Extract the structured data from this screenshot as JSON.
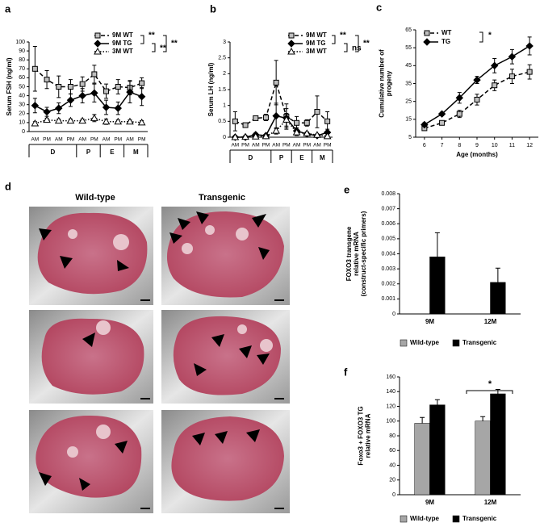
{
  "chart_data": [
    {
      "type": "line",
      "panel": "a",
      "ylabel": [
        "Serum FSH (ng/ml)"
      ],
      "categories": [
        "AM",
        "PM",
        "AM",
        "PM",
        "AM",
        "PM",
        "AM",
        "PM",
        "AM",
        "PM"
      ],
      "x_groups": [
        {
          "label": "D",
          "count": 4
        },
        {
          "label": "P",
          "count": 2
        },
        {
          "label": "E",
          "count": 2
        },
        {
          "label": "M",
          "count": 2
        }
      ],
      "ylim": [
        0,
        100
      ],
      "yticks": [
        0,
        10,
        20,
        30,
        40,
        50,
        60,
        70,
        80,
        90,
        100
      ],
      "series": [
        {
          "name": "9M WT",
          "color": "#000000",
          "marker": "square",
          "marker_fill": "#bfbfbf",
          "line_style": "dashed",
          "values": [
            70,
            58,
            50,
            50,
            53,
            64,
            45,
            50,
            49,
            54
          ],
          "errors": [
            25,
            10,
            12,
            8,
            8,
            10,
            8,
            8,
            8,
            6
          ]
        },
        {
          "name": "9M TG",
          "color": "#000000",
          "marker": "diamond",
          "marker_fill": "#000000",
          "line_style": "solid",
          "values": [
            29,
            22,
            26,
            35,
            40,
            43,
            27,
            26,
            44,
            39
          ],
          "errors": [
            8,
            5,
            6,
            7,
            8,
            10,
            8,
            7,
            12,
            10
          ]
        },
        {
          "name": "3M WT",
          "color": "#000000",
          "marker": "triangle",
          "marker_fill": "#ffffff",
          "line_style": "dotted",
          "values": [
            9,
            13,
            12,
            12,
            12,
            15,
            11,
            11,
            11,
            10
          ],
          "errors": [
            2,
            2,
            2,
            2,
            2,
            4,
            3,
            2,
            2,
            2
          ]
        }
      ],
      "annotations": [
        "**",
        "**",
        "**"
      ]
    },
    {
      "type": "line",
      "panel": "b",
      "ylabel": [
        "Serum LH (ng/ml)"
      ],
      "categories": [
        "AM",
        "PM",
        "AM",
        "PM",
        "AM",
        "PM",
        "AM",
        "PM",
        "AM",
        "PM"
      ],
      "x_groups": [
        {
          "label": "D",
          "count": 4
        },
        {
          "label": "P",
          "count": 2
        },
        {
          "label": "E",
          "count": 2
        },
        {
          "label": "M",
          "count": 2
        }
      ],
      "ylim": [
        0,
        3
      ],
      "yticks": [
        0,
        0.5,
        1,
        1.5,
        2,
        2.5,
        3
      ],
      "series": [
        {
          "name": "9M WT",
          "color": "#000000",
          "marker": "square",
          "marker_fill": "#bfbfbf",
          "line_style": "dashed",
          "values": [
            0.5,
            0.38,
            0.6,
            0.62,
            1.72,
            0.65,
            0.45,
            0.45,
            0.8,
            0.5
          ],
          "errors": [
            0.3,
            0.05,
            0.05,
            0.1,
            0.7,
            0.4,
            0.2,
            0.1,
            0.5,
            0.3
          ]
        },
        {
          "name": "9M TG",
          "color": "#000000",
          "marker": "diamond",
          "marker_fill": "#000000",
          "line_style": "solid",
          "values": [
            0,
            0,
            0.08,
            0.05,
            0.67,
            0.6,
            0.2,
            0.1,
            0.05,
            0.15
          ],
          "errors": [
            0.02,
            0.02,
            0.05,
            0.03,
            0.4,
            0.3,
            0.1,
            0.05,
            0.03,
            0.1
          ]
        },
        {
          "name": "3M WT",
          "color": "#000000",
          "marker": "triangle",
          "marker_fill": "#ffffff",
          "line_style": "dotted",
          "values": [
            0,
            0.01,
            0.02,
            0.03,
            0.2,
            0.55,
            0.15,
            0.12,
            0.07,
            0.03
          ],
          "errors": [
            0.01,
            0.01,
            0.02,
            0.02,
            0.1,
            0.2,
            0.1,
            0.05,
            0.03,
            0.02
          ]
        }
      ],
      "annotations": [
        "**",
        "**",
        "ns"
      ]
    },
    {
      "type": "xyline",
      "panel": "c",
      "ylabel": [
        "Cumulative number of",
        "progeny"
      ],
      "xlabel": "Age (months)",
      "x": [
        6,
        7,
        8,
        9,
        10,
        11,
        12
      ],
      "xlim": [
        5.5,
        12.5
      ],
      "xticks": [
        6,
        7,
        8,
        9,
        10,
        11,
        12
      ],
      "ylim": [
        5,
        65
      ],
      "yticks": [
        5,
        15,
        25,
        35,
        45,
        55,
        65
      ],
      "series": [
        {
          "name": "WT",
          "color": "#000000",
          "marker": "square",
          "marker_fill": "#bfbfbf",
          "line_style": "dashed",
          "values": [
            10,
            13,
            18,
            26,
            34,
            39,
            41.5
          ],
          "errors": [
            1,
            1,
            2,
            3,
            3,
            4,
            4
          ]
        },
        {
          "name": "TG",
          "color": "#000000",
          "marker": "diamond",
          "marker_fill": "#000000",
          "line_style": "solid",
          "values": [
            12,
            18,
            27,
            37,
            45,
            50,
            56
          ],
          "errors": [
            1,
            1,
            3,
            2,
            4,
            4,
            5
          ]
        }
      ],
      "annotations": [
        "*"
      ]
    },
    {
      "type": "bar",
      "panel": "e",
      "ylabel": [
        "FOXO3 transgene",
        "relative mRNA",
        "(construct-specific primers)"
      ],
      "categories": [
        "9M",
        "12M"
      ],
      "ylim": [
        0,
        0.008
      ],
      "yticks": [
        0,
        0.001,
        0.002,
        0.003,
        0.004,
        0.005,
        0.006,
        0.007,
        0.008
      ],
      "series": [
        {
          "name": "Wild-type",
          "color": "#a6a6a6",
          "values": [
            null,
            null
          ],
          "errors": [
            null,
            null
          ]
        },
        {
          "name": "Transgenic",
          "color": "#000000",
          "values": [
            0.0038,
            0.0021
          ],
          "errors": [
            0.0016,
            0.00095
          ]
        }
      ],
      "annotations": []
    },
    {
      "type": "bar",
      "panel": "f",
      "ylabel": [
        "Foxo3 + FOXO3 TG",
        "relative mRNA"
      ],
      "categories": [
        "9M",
        "12M"
      ],
      "ylim": [
        0,
        160
      ],
      "yticks": [
        0,
        20,
        40,
        60,
        80,
        100,
        120,
        140,
        160
      ],
      "series": [
        {
          "name": "Wild-type",
          "color": "#a6a6a6",
          "values": [
            97,
            100
          ],
          "errors": [
            8,
            6
          ]
        },
        {
          "name": "Transgenic",
          "color": "#000000",
          "values": [
            122,
            137
          ],
          "errors": [
            7,
            6
          ]
        }
      ],
      "annotations": [
        "*"
      ]
    }
  ],
  "image_panel": {
    "panel": "d",
    "columns": [
      "Wild-type",
      "Transgenic"
    ]
  }
}
